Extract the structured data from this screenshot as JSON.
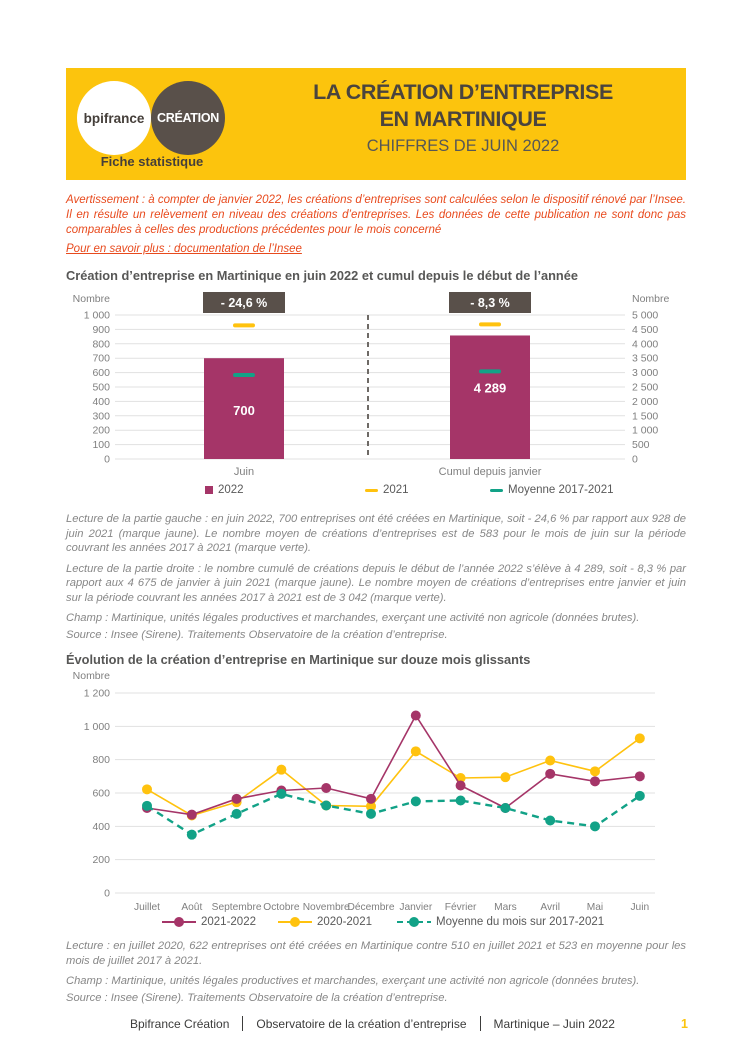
{
  "header": {
    "logo_primary": "bpifrance",
    "logo_secondary": "CRÉATION",
    "tagline": "Fiche statistique",
    "title_line1": "LA CRÉATION D’ENTREPRISE",
    "title_line2": "EN MARTINIQUE",
    "subtitle": "CHIFFRES DE JUIN 2022"
  },
  "notice": {
    "text": "Avertissement : à compter de janvier 2022, les créations d’entreprises sont calculées selon le dispositif rénové par l’Insee. Il en résulte un relèvement en niveau des créations d’entreprises. Les données de cette publication ne sont donc pas comparables à celles des productions précédentes pour le mois concerné",
    "link": "Pour en savoir plus : documentation de l’Insee"
  },
  "chart_data": [
    {
      "type": "bar",
      "title": "Création d’entreprise en Martinique en juin 2022 et cumul depuis le début de l’année",
      "axis_label_left": "Nombre",
      "axis_label_right": "Nombre",
      "left_axis": {
        "min": 0,
        "max": 1000,
        "step": 100
      },
      "right_axis": {
        "min": 0,
        "max": 5000,
        "step": 500
      },
      "grid": true,
      "legend_position": "bottom",
      "colors": {
        "bar": "#A53568",
        "prev": "#FFC20E",
        "mean": "#12A287",
        "badge": "#59504A"
      },
      "groups": [
        {
          "label": "Juin",
          "axis": "left",
          "value_2022": 700,
          "bar_label": "700",
          "value_2021": 928,
          "moyenne_2017_2021": 583,
          "delta_label": "- 24,6 %"
        },
        {
          "label": "Cumul depuis janvier",
          "axis": "right",
          "value_2022": 4289,
          "bar_label": "4 289",
          "value_2021": 4675,
          "moyenne_2017_2021": 3042,
          "delta_label": "- 8,3 %"
        }
      ],
      "legend": [
        {
          "label": "2022",
          "color": "#A53568",
          "marker": "square"
        },
        {
          "label": "2021",
          "color": "#FFC20E",
          "marker": "dash"
        },
        {
          "label": "Moyenne 2017-2021",
          "color": "#12A287",
          "marker": "dash"
        }
      ]
    },
    {
      "type": "line",
      "title": "Évolution de la création d’entreprise en Martinique sur douze mois glissants",
      "ylabel": "Nombre",
      "ylim": [
        0,
        1200
      ],
      "ystep": 200,
      "grid": true,
      "legend_position": "bottom",
      "categories": [
        "Juillet",
        "Août",
        "Septembre",
        "Octobre",
        "Novembre",
        "Décembre",
        "Janvier",
        "Février",
        "Mars",
        "Avril",
        "Mai",
        "Juin"
      ],
      "series": [
        {
          "name": "2021-2022",
          "color": "#A53568",
          "style": "solid",
          "values": [
            510,
            470,
            565,
            615,
            630,
            565,
            1065,
            645,
            510,
            715,
            670,
            700
          ]
        },
        {
          "name": "2020-2021",
          "color": "#FFC20E",
          "style": "solid",
          "values": [
            622,
            465,
            545,
            740,
            525,
            520,
            850,
            690,
            695,
            795,
            730,
            928
          ]
        },
        {
          "name": "Moyenne du mois sur 2017-2021",
          "color": "#12A287",
          "style": "dashed",
          "values": [
            523,
            350,
            475,
            595,
            525,
            475,
            550,
            555,
            510,
            435,
            400,
            583
          ]
        }
      ]
    }
  ],
  "chart1_notes": [
    "Lecture de la partie gauche : en juin 2022, 700 entreprises ont été créées en Martinique, soit - 24,6 % par rapport aux 928 de juin 2021 (marque jaune). Le nombre moyen de créations d’entreprises est de 583 pour le mois de juin sur la période couvrant les années 2017 à 2021 (marque verte).",
    "Lecture de la partie droite : le nombre cumulé de créations depuis le début de l’année 2022 s’élève à 4 289, soit - 8,3 % par rapport aux 4 675 de janvier à juin 2021 (marque jaune). Le nombre moyen de créations d’entreprises entre janvier et juin sur la période couvrant les années 2017 à 2021 est de 3 042 (marque verte).",
    "Champ : Martinique, unités légales productives et marchandes, exerçant une activité non agricole (données brutes).",
    "Source : Insee (Sirene). Traitements Observatoire de la création d’entreprise."
  ],
  "chart2_notes": [
    "Lecture : en juillet 2020, 622 entreprises ont été créées en Martinique contre 510 en juillet 2021 et 523 en moyenne pour les mois de juillet 2017 à 2021.",
    "Champ : Martinique, unités légales productives et marchandes, exerçant une activité non agricole (données brutes).",
    "Source : Insee (Sirene). Traitements Observatoire de la création d’entreprise."
  ],
  "footer": {
    "items": [
      "Bpifrance Création",
      "Observatoire de la création d’entreprise",
      "Martinique – Juin 2022"
    ],
    "page": "1"
  }
}
